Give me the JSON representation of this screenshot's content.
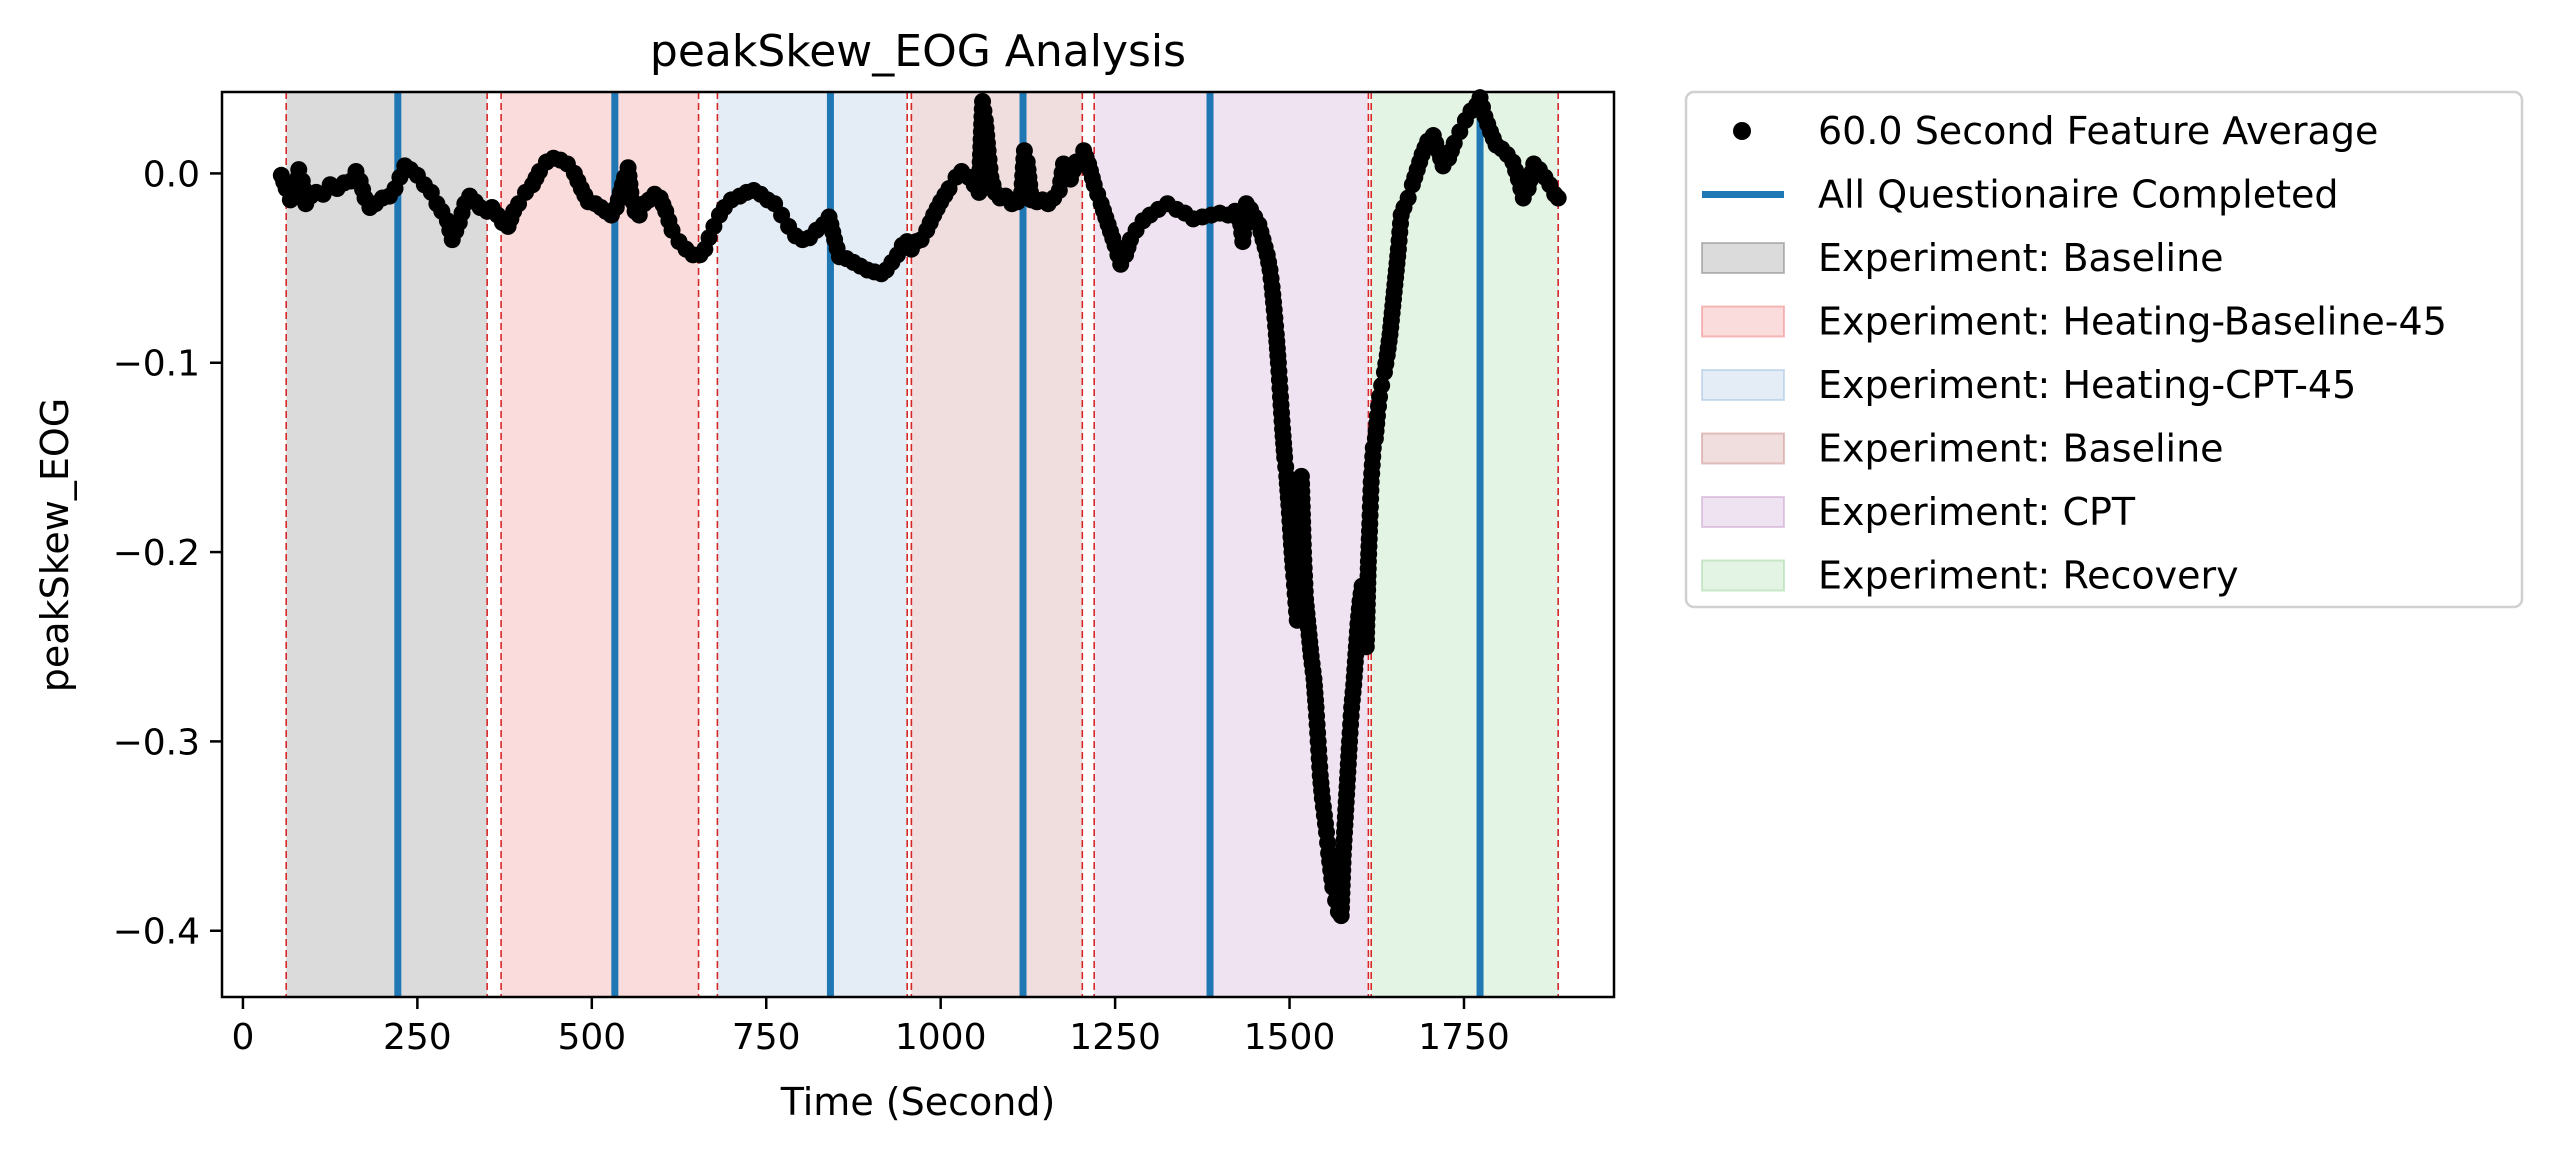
{
  "chart_data": {
    "type": "scatter",
    "title": "peakSkew_EOG Analysis",
    "xlabel": "Time (Second)",
    "ylabel": "peakSkew_EOG",
    "xlim": [
      -30,
      1965
    ],
    "ylim": [
      -0.435,
      0.043
    ],
    "xticks": [
      0,
      250,
      500,
      750,
      1000,
      1250,
      1500,
      1750
    ],
    "xtick_labels": [
      "0",
      "250",
      "500",
      "750",
      "1000",
      "1250",
      "1500",
      "1750"
    ],
    "yticks": [
      0.0,
      -0.1,
      -0.2,
      -0.3,
      -0.4
    ],
    "ytick_labels": [
      "0.0",
      "−0.1",
      "−0.2",
      "−0.3",
      "−0.4"
    ],
    "grid": false,
    "legend_position": "outside-right",
    "legend": [
      {
        "label": "60.0 Second Feature Average",
        "kind": "marker",
        "color": "#000000"
      },
      {
        "label": "All Questionaire Completed",
        "kind": "line",
        "color": "#1f77b4"
      },
      {
        "label": "Experiment: Baseline",
        "kind": "patch",
        "color": "#7f7f7f"
      },
      {
        "label": "Experiment: Heating-Baseline-45",
        "kind": "patch",
        "color": "#f08080"
      },
      {
        "label": "Experiment: Heating-CPT-45",
        "kind": "patch",
        "color": "#9ec0e0"
      },
      {
        "label": "Experiment: Baseline",
        "kind": "patch",
        "color": "#c98a8a"
      },
      {
        "label": "Experiment: CPT",
        "kind": "patch",
        "color": "#c89ccc"
      },
      {
        "label": "Experiment: Recovery",
        "kind": "patch",
        "color": "#9ed69e"
      }
    ],
    "spans": [
      {
        "label": "Experiment: Baseline",
        "start": 62,
        "end": 350,
        "color": "#7f7f7f"
      },
      {
        "label": "Experiment: Heating-Baseline-45",
        "start": 370,
        "end": 653,
        "color": "#f08080"
      },
      {
        "label": "Experiment: Heating-CPT-45",
        "start": 680,
        "end": 952,
        "color": "#9ec0e0"
      },
      {
        "label": "Experiment: Baseline",
        "start": 958,
        "end": 1203,
        "color": "#c98a8a"
      },
      {
        "label": "Experiment: CPT",
        "start": 1220,
        "end": 1613,
        "color": "#c89ccc"
      },
      {
        "label": "Experiment: Recovery",
        "start": 1617,
        "end": 1885,
        "color": "#9ed69e"
      }
    ],
    "boundaries": [
      62,
      350,
      370,
      653,
      680,
      952,
      958,
      1203,
      1220,
      1613,
      1617,
      1885
    ],
    "questionnaire_times": [
      222,
      533,
      842,
      1118,
      1386,
      1773
    ],
    "series": [
      {
        "name": "60.0 Second Feature Average",
        "color": "#000000",
        "points": [
          [
            55,
            -0.001
          ],
          [
            62,
            -0.008
          ],
          [
            68,
            -0.014
          ],
          [
            75,
            -0.012
          ],
          [
            80,
            0.002
          ],
          [
            85,
            -0.004
          ],
          [
            90,
            -0.016
          ],
          [
            97,
            -0.012
          ],
          [
            105,
            -0.01
          ],
          [
            115,
            -0.011
          ],
          [
            125,
            -0.006
          ],
          [
            135,
            -0.008
          ],
          [
            145,
            -0.005
          ],
          [
            155,
            -0.004
          ],
          [
            162,
            0.001
          ],
          [
            168,
            -0.004
          ],
          [
            175,
            -0.013
          ],
          [
            182,
            -0.018
          ],
          [
            190,
            -0.016
          ],
          [
            200,
            -0.013
          ],
          [
            210,
            -0.012
          ],
          [
            218,
            -0.008
          ],
          [
            225,
            -0.002
          ],
          [
            232,
            0.004
          ],
          [
            240,
            0.002
          ],
          [
            250,
            -0.001
          ],
          [
            260,
            -0.006
          ],
          [
            270,
            -0.01
          ],
          [
            278,
            -0.016
          ],
          [
            285,
            -0.02
          ],
          [
            293,
            -0.025
          ],
          [
            300,
            -0.035
          ],
          [
            310,
            -0.026
          ],
          [
            318,
            -0.016
          ],
          [
            325,
            -0.012
          ],
          [
            333,
            -0.015
          ],
          [
            340,
            -0.018
          ],
          [
            350,
            -0.02
          ],
          [
            357,
            -0.018
          ],
          [
            365,
            -0.022
          ],
          [
            372,
            -0.026
          ],
          [
            380,
            -0.028
          ],
          [
            388,
            -0.02
          ],
          [
            395,
            -0.016
          ],
          [
            405,
            -0.01
          ],
          [
            415,
            -0.006
          ],
          [
            425,
            0.001
          ],
          [
            435,
            0.006
          ],
          [
            445,
            0.008
          ],
          [
            455,
            0.007
          ],
          [
            465,
            0.005
          ],
          [
            475,
            0.0
          ],
          [
            485,
            -0.008
          ],
          [
            495,
            -0.015
          ],
          [
            505,
            -0.016
          ],
          [
            513,
            -0.018
          ],
          [
            520,
            -0.02
          ],
          [
            528,
            -0.022
          ],
          [
            535,
            -0.018
          ],
          [
            541,
            -0.01
          ],
          [
            547,
            -0.002
          ],
          [
            552,
            0.003
          ],
          [
            556,
            -0.01
          ],
          [
            562,
            -0.02
          ],
          [
            568,
            -0.022
          ],
          [
            575,
            -0.016
          ],
          [
            582,
            -0.014
          ],
          [
            590,
            -0.011
          ],
          [
            598,
            -0.013
          ],
          [
            606,
            -0.02
          ],
          [
            615,
            -0.03
          ],
          [
            625,
            -0.036
          ],
          [
            635,
            -0.04
          ],
          [
            645,
            -0.043
          ],
          [
            655,
            -0.043
          ],
          [
            662,
            -0.04
          ],
          [
            668,
            -0.034
          ],
          [
            675,
            -0.028
          ],
          [
            683,
            -0.022
          ],
          [
            690,
            -0.018
          ],
          [
            700,
            -0.014
          ],
          [
            712,
            -0.012
          ],
          [
            722,
            -0.01
          ],
          [
            732,
            -0.009
          ],
          [
            742,
            -0.011
          ],
          [
            752,
            -0.014
          ],
          [
            762,
            -0.016
          ],
          [
            772,
            -0.022
          ],
          [
            782,
            -0.028
          ],
          [
            792,
            -0.033
          ],
          [
            802,
            -0.035
          ],
          [
            812,
            -0.034
          ],
          [
            822,
            -0.03
          ],
          [
            832,
            -0.027
          ],
          [
            840,
            -0.023
          ],
          [
            848,
            -0.035
          ],
          [
            855,
            -0.044
          ],
          [
            865,
            -0.045
          ],
          [
            875,
            -0.047
          ],
          [
            885,
            -0.049
          ],
          [
            895,
            -0.051
          ],
          [
            905,
            -0.052
          ],
          [
            915,
            -0.053
          ],
          [
            922,
            -0.051
          ],
          [
            930,
            -0.047
          ],
          [
            938,
            -0.043
          ],
          [
            945,
            -0.038
          ],
          [
            952,
            -0.036
          ],
          [
            958,
            -0.04
          ],
          [
            965,
            -0.036
          ],
          [
            972,
            -0.035
          ],
          [
            980,
            -0.03
          ],
          [
            990,
            -0.022
          ],
          [
            1000,
            -0.015
          ],
          [
            1012,
            -0.008
          ],
          [
            1022,
            -0.002
          ],
          [
            1030,
            0.001
          ],
          [
            1040,
            -0.002
          ],
          [
            1048,
            -0.006
          ],
          [
            1055,
            -0.01
          ],
          [
            1060,
            0.038
          ],
          [
            1064,
            0.028
          ],
          [
            1068,
            0.012
          ],
          [
            1072,
            -0.002
          ],
          [
            1078,
            -0.01
          ],
          [
            1085,
            -0.013
          ],
          [
            1093,
            -0.012
          ],
          [
            1102,
            -0.016
          ],
          [
            1110,
            -0.015
          ],
          [
            1116,
            -0.01
          ],
          [
            1120,
            0.012
          ],
          [
            1124,
            0.006
          ],
          [
            1130,
            -0.014
          ],
          [
            1138,
            -0.015
          ],
          [
            1146,
            -0.014
          ],
          [
            1154,
            -0.016
          ],
          [
            1162,
            -0.013
          ],
          [
            1170,
            -0.009
          ],
          [
            1176,
            0.005
          ],
          [
            1180,
            -0.001
          ],
          [
            1186,
            -0.003
          ],
          [
            1194,
            0.006
          ],
          [
            1200,
            0.005
          ],
          [
            1205,
            0.012
          ],
          [
            1212,
            0.005
          ],
          [
            1220,
            -0.006
          ],
          [
            1230,
            -0.016
          ],
          [
            1240,
            -0.027
          ],
          [
            1250,
            -0.038
          ],
          [
            1258,
            -0.048
          ],
          [
            1265,
            -0.043
          ],
          [
            1272,
            -0.035
          ],
          [
            1280,
            -0.03
          ],
          [
            1290,
            -0.025
          ],
          [
            1300,
            -0.022
          ],
          [
            1312,
            -0.019
          ],
          [
            1325,
            -0.016
          ],
          [
            1338,
            -0.019
          ],
          [
            1350,
            -0.021
          ],
          [
            1362,
            -0.024
          ],
          [
            1375,
            -0.023
          ],
          [
            1388,
            -0.022
          ],
          [
            1400,
            -0.021
          ],
          [
            1412,
            -0.022
          ],
          [
            1422,
            -0.02
          ],
          [
            1430,
            -0.027
          ],
          [
            1433,
            -0.036
          ],
          [
            1438,
            -0.016
          ],
          [
            1444,
            -0.019
          ],
          [
            1450,
            -0.023
          ],
          [
            1456,
            -0.027
          ],
          [
            1462,
            -0.035
          ],
          [
            1468,
            -0.043
          ],
          [
            1472,
            -0.051
          ],
          [
            1475,
            -0.06
          ],
          [
            1478,
            -0.072
          ],
          [
            1481,
            -0.085
          ],
          [
            1484,
            -0.1
          ],
          [
            1487,
            -0.118
          ],
          [
            1490,
            -0.135
          ],
          [
            1493,
            -0.15
          ],
          [
            1496,
            -0.16
          ],
          [
            1499,
            -0.175
          ],
          [
            1502,
            -0.192
          ],
          [
            1505,
            -0.208
          ],
          [
            1508,
            -0.222
          ],
          [
            1511,
            -0.236
          ],
          [
            1514,
            -0.175
          ],
          [
            1517,
            -0.16
          ],
          [
            1520,
            -0.2
          ],
          [
            1523,
            -0.225
          ],
          [
            1527,
            -0.24
          ],
          [
            1531,
            -0.255
          ],
          [
            1535,
            -0.267
          ],
          [
            1538,
            -0.282
          ],
          [
            1541,
            -0.3
          ],
          [
            1544,
            -0.318
          ],
          [
            1547,
            -0.33
          ],
          [
            1550,
            -0.339
          ],
          [
            1553,
            -0.348
          ],
          [
            1556,
            -0.359
          ],
          [
            1559,
            -0.368
          ],
          [
            1562,
            -0.377
          ],
          [
            1566,
            -0.384
          ],
          [
            1570,
            -0.39
          ],
          [
            1574,
            -0.392
          ],
          [
            1577,
            -0.36
          ],
          [
            1580,
            -0.34
          ],
          [
            1583,
            -0.32
          ],
          [
            1586,
            -0.3
          ],
          [
            1589,
            -0.282
          ],
          [
            1592,
            -0.27
          ],
          [
            1595,
            -0.254
          ],
          [
            1598,
            -0.238
          ],
          [
            1601,
            -0.226
          ],
          [
            1604,
            -0.218
          ],
          [
            1607,
            -0.23
          ],
          [
            1610,
            -0.25
          ],
          [
            1613,
            -0.205
          ],
          [
            1615,
            -0.185
          ],
          [
            1617,
            -0.163
          ],
          [
            1620,
            -0.145
          ],
          [
            1623,
            -0.14
          ],
          [
            1626,
            -0.128
          ],
          [
            1629,
            -0.118
          ],
          [
            1632,
            -0.112
          ],
          [
            1636,
            -0.105
          ],
          [
            1640,
            -0.096
          ],
          [
            1644,
            -0.085
          ],
          [
            1648,
            -0.07
          ],
          [
            1652,
            -0.055
          ],
          [
            1656,
            -0.04
          ],
          [
            1660,
            -0.022
          ],
          [
            1664,
            -0.018
          ],
          [
            1670,
            -0.013
          ],
          [
            1676,
            -0.006
          ],
          [
            1683,
            0.002
          ],
          [
            1690,
            0.01
          ],
          [
            1698,
            0.017
          ],
          [
            1706,
            0.02
          ],
          [
            1713,
            0.012
          ],
          [
            1720,
            0.004
          ],
          [
            1728,
            0.008
          ],
          [
            1736,
            0.016
          ],
          [
            1744,
            0.022
          ],
          [
            1752,
            0.028
          ],
          [
            1760,
            0.033
          ],
          [
            1768,
            0.036
          ],
          [
            1773,
            0.04
          ],
          [
            1780,
            0.03
          ],
          [
            1788,
            0.022
          ],
          [
            1796,
            0.015
          ],
          [
            1804,
            0.013
          ],
          [
            1812,
            0.01
          ],
          [
            1820,
            0.006
          ],
          [
            1828,
            -0.003
          ],
          [
            1835,
            -0.013
          ],
          [
            1842,
            -0.008
          ],
          [
            1850,
            0.005
          ],
          [
            1858,
            0.002
          ],
          [
            1866,
            -0.002
          ],
          [
            1873,
            -0.006
          ],
          [
            1880,
            -0.011
          ],
          [
            1885,
            -0.013
          ]
        ]
      }
    ]
  }
}
